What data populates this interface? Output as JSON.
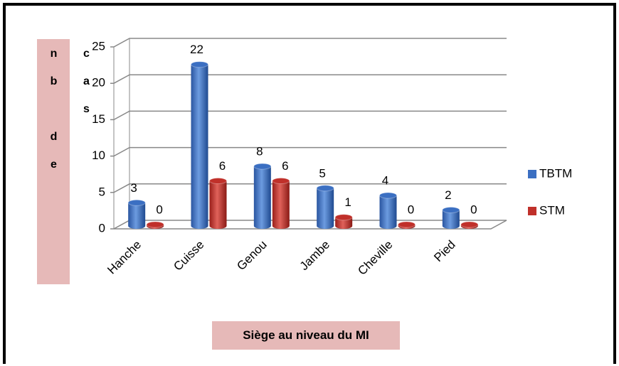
{
  "chart_data": {
    "type": "bar3d",
    "y_label": "nb de cas",
    "x_label": "Siège au niveau du MI",
    "categories": [
      "Hanche",
      "Cuisse",
      "Genou",
      "Jambe",
      "Cheville",
      "Pied"
    ],
    "series": [
      {
        "name": "TBTM",
        "color": "#3b6fc2",
        "values": [
          3,
          22,
          8,
          5,
          4,
          2
        ]
      },
      {
        "name": "STM",
        "color": "#c0302a",
        "values": [
          0,
          6,
          6,
          1,
          0,
          0
        ]
      }
    ],
    "ylim": [
      0,
      25
    ],
    "yticks": [
      0,
      5,
      10,
      15,
      20,
      25
    ],
    "grid": true,
    "legend": "right"
  }
}
